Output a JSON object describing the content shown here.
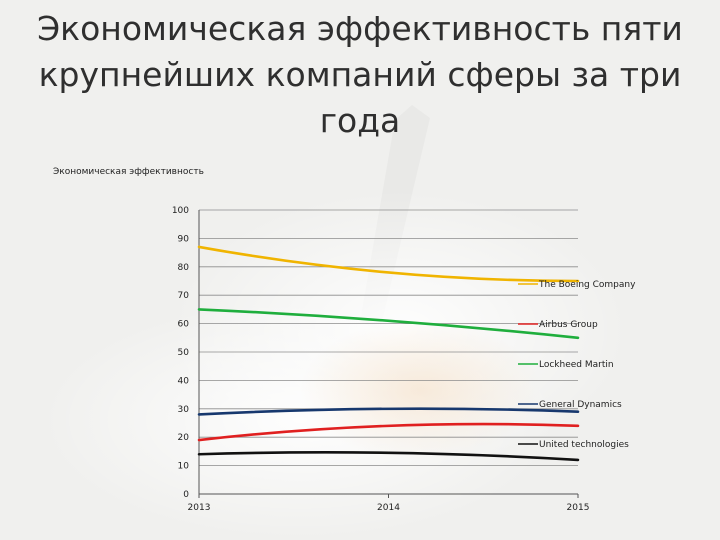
{
  "slide": {
    "title": "Экономическая эффективность пяти крупнейших компаний сферы за три года"
  },
  "colors": {
    "background": "#f3f3f1",
    "grid": "#8c8c8c",
    "axis": "#555555"
  },
  "chart_data": {
    "type": "line",
    "title": "Экономическая эффективность",
    "xlabel": "",
    "ylabel": "",
    "categories": [
      "2013",
      "2014",
      "2015"
    ],
    "ylim": [
      0,
      100
    ],
    "yticks": [
      0,
      10,
      20,
      30,
      40,
      50,
      60,
      70,
      80,
      90,
      100
    ],
    "grid": true,
    "legend_position": "right",
    "series": [
      {
        "name": "The Boeing Company",
        "color": "#f0b400",
        "values": [
          87,
          78,
          75
        ]
      },
      {
        "name": "Airbus Group",
        "color": "#e02020",
        "values": [
          19,
          24,
          24
        ]
      },
      {
        "name": "Lockheed Martin",
        "color": "#1fae3d",
        "values": [
          65,
          61,
          55
        ]
      },
      {
        "name": "General Dynamics",
        "color": "#17386e",
        "values": [
          28,
          30,
          29
        ]
      },
      {
        "name": "United technologies",
        "color": "#111111",
        "values": [
          14,
          14.5,
          12
        ]
      }
    ],
    "legend_order": [
      "The Boeing Company",
      "Airbus Group",
      "Lockheed Martin",
      "General Dynamics",
      "United technologies"
    ]
  }
}
